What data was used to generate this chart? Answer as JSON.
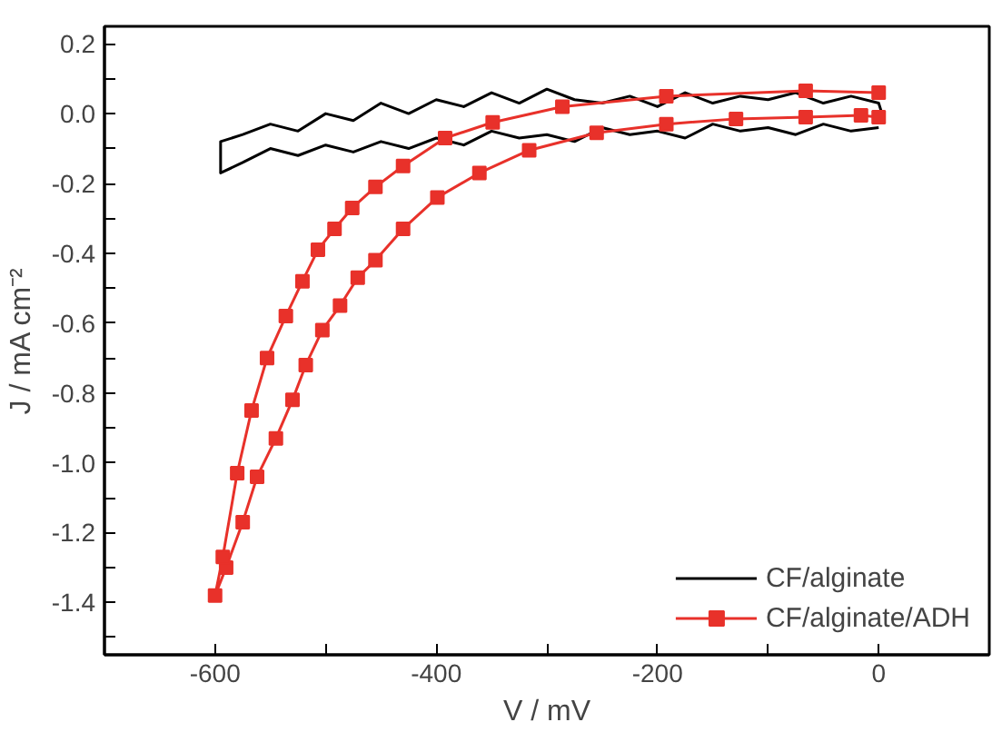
{
  "chart_data": {
    "type": "line",
    "xlabel": "V / mV",
    "ylabel": "J / mA cm⁻²",
    "xlim": [
      -700,
      100
    ],
    "ylim": [
      -1.55,
      0.25
    ],
    "xticks": [
      {
        "value": -700,
        "label": null
      },
      -600,
      {
        "value": -500,
        "label": null
      },
      -400,
      {
        "value": -300,
        "label": null
      },
      -200,
      {
        "value": -100,
        "label": null
      },
      0,
      {
        "value": 100,
        "label": null
      }
    ],
    "yticks": [
      {
        "value": -1.5,
        "label": null
      },
      -1.4,
      {
        "value": -1.3,
        "label": null
      },
      -1.2,
      {
        "value": -1.1,
        "label": null
      },
      {
        "value": -1.0,
        "label": "-1.0"
      },
      {
        "value": -0.9,
        "label": null
      },
      -0.8,
      {
        "value": -0.7,
        "label": null
      },
      -0.6,
      {
        "value": -0.5,
        "label": null
      },
      -0.4,
      {
        "value": -0.3,
        "label": null
      },
      -0.2,
      {
        "value": -0.1,
        "label": null
      },
      {
        "value": 0.0,
        "label": "0.0"
      },
      {
        "value": 0.1,
        "label": null
      },
      0.2
    ],
    "grid": false,
    "legend": "bottom right",
    "series": [
      {
        "name": "CF/alginate",
        "color": "#000000",
        "marker": "none",
        "x": [
          0,
          -25,
          -50,
          -75,
          -100,
          -125,
          -150,
          -175,
          -200,
          -225,
          -250,
          -275,
          -300,
          -325,
          -350,
          -375,
          -400,
          -425,
          -450,
          -475,
          -500,
          -525,
          -550,
          -575,
          -595,
          -595,
          -575,
          -550,
          -525,
          -500,
          -475,
          -450,
          -425,
          -400,
          -375,
          -350,
          -325,
          -300,
          -275,
          -250,
          -225,
          -200,
          -175,
          -150,
          -125,
          -100,
          -75,
          -50,
          -25,
          0,
          3
        ],
        "values": [
          -0.04,
          -0.05,
          -0.03,
          -0.06,
          -0.04,
          -0.05,
          -0.03,
          -0.07,
          -0.05,
          -0.06,
          -0.04,
          -0.08,
          -0.06,
          -0.07,
          -0.05,
          -0.09,
          -0.07,
          -0.1,
          -0.08,
          -0.11,
          -0.09,
          -0.12,
          -0.1,
          -0.14,
          -0.17,
          -0.08,
          -0.06,
          -0.03,
          -0.05,
          0.0,
          -0.02,
          0.03,
          0.0,
          0.04,
          0.02,
          0.06,
          0.03,
          0.07,
          0.04,
          0.03,
          0.05,
          0.02,
          0.06,
          0.03,
          0.05,
          0.04,
          0.06,
          0.03,
          0.05,
          0.03,
          0.0
        ]
      },
      {
        "name": "CF/alginate/ADH",
        "color": "#e8312a",
        "marker": "square",
        "x": [
          0,
          -16,
          -66,
          -129,
          -192,
          -255,
          -316,
          -361,
          -399,
          -430,
          -455,
          -471,
          -487,
          -503,
          -518,
          -530,
          -545,
          -562,
          -575,
          -590,
          -600,
          -593,
          -580,
          -567,
          -553,
          -536,
          -521,
          -507,
          -492,
          -476,
          -455,
          -430,
          -392,
          -349,
          -286,
          -192,
          -66,
          0
        ],
        "values": [
          -0.01,
          -0.005,
          -0.01,
          -0.015,
          -0.03,
          -0.055,
          -0.105,
          -0.17,
          -0.24,
          -0.33,
          -0.42,
          -0.47,
          -0.55,
          -0.62,
          -0.72,
          -0.82,
          -0.93,
          -1.04,
          -1.17,
          -1.3,
          -1.38,
          -1.27,
          -1.03,
          -0.85,
          -0.7,
          -0.58,
          -0.48,
          -0.39,
          -0.33,
          -0.27,
          -0.21,
          -0.15,
          -0.07,
          -0.025,
          0.02,
          0.05,
          0.065,
          0.06
        ]
      }
    ]
  }
}
